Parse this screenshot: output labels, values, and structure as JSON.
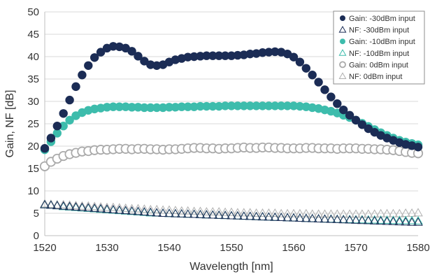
{
  "chart_data": {
    "type": "scatter",
    "xlabel": "Wavelength [nm]",
    "ylabel": "Gain, NF [dB]",
    "xlim": [
      1520,
      1580
    ],
    "ylim": [
      0,
      50
    ],
    "xticks": [
      1520,
      1530,
      1540,
      1550,
      1560,
      1570,
      1580
    ],
    "yticks": [
      0,
      5,
      10,
      15,
      20,
      25,
      30,
      35,
      40,
      45,
      50
    ],
    "grid": "horizontal",
    "legend_position": "top-right",
    "series": [
      {
        "name": "Gain: -30dBm input",
        "marker": "circle-filled",
        "color": "#1b2c55",
        "x": [
          1520,
          1521,
          1522,
          1523,
          1524,
          1525,
          1526,
          1527,
          1528,
          1529,
          1530,
          1531,
          1532,
          1533,
          1534,
          1535,
          1536,
          1537,
          1538,
          1539,
          1540,
          1541,
          1542,
          1543,
          1544,
          1545,
          1546,
          1547,
          1548,
          1549,
          1550,
          1551,
          1552,
          1553,
          1554,
          1555,
          1556,
          1557,
          1558,
          1559,
          1560,
          1561,
          1562,
          1563,
          1564,
          1565,
          1566,
          1567,
          1568,
          1569,
          1570,
          1571,
          1572,
          1573,
          1574,
          1575,
          1576,
          1577,
          1578,
          1579,
          1580
        ],
        "values": [
          19.5,
          21.8,
          24.5,
          27.3,
          30.3,
          33.3,
          35.9,
          38.0,
          39.8,
          41.0,
          41.9,
          42.3,
          42.2,
          41.9,
          41.2,
          40.1,
          39.0,
          38.2,
          38.0,
          38.2,
          38.8,
          39.3,
          39.6,
          39.9,
          40.0,
          40.1,
          40.2,
          40.2,
          40.2,
          40.2,
          40.2,
          40.3,
          40.4,
          40.6,
          40.7,
          40.9,
          41.0,
          41.1,
          41.0,
          40.6,
          39.9,
          38.8,
          37.4,
          35.9,
          34.3,
          32.6,
          31.0,
          29.5,
          28.1,
          26.9,
          25.8,
          24.8,
          23.9,
          23.1,
          22.4,
          21.8,
          21.3,
          20.8,
          20.4,
          20.1,
          19.8
        ]
      },
      {
        "name": "NF: -30dBm input",
        "marker": "triangle-open",
        "color": "#1b2c55",
        "x": [
          1520,
          1521,
          1522,
          1523,
          1524,
          1525,
          1526,
          1527,
          1528,
          1529,
          1530,
          1531,
          1532,
          1533,
          1534,
          1535,
          1536,
          1537,
          1538,
          1539,
          1540,
          1541,
          1542,
          1543,
          1544,
          1545,
          1546,
          1547,
          1548,
          1549,
          1550,
          1551,
          1552,
          1553,
          1554,
          1555,
          1556,
          1557,
          1558,
          1559,
          1560,
          1561,
          1562,
          1563,
          1564,
          1565,
          1566,
          1567,
          1568,
          1569,
          1570,
          1571,
          1572,
          1573,
          1574,
          1575,
          1576,
          1577,
          1578,
          1579,
          1580
        ],
        "values": [
          6.9,
          6.8,
          6.7,
          6.6,
          6.5,
          6.4,
          6.3,
          6.2,
          6.1,
          6.0,
          5.9,
          5.8,
          5.7,
          5.6,
          5.5,
          5.4,
          5.3,
          5.2,
          5.1,
          5.0,
          4.95,
          4.9,
          4.85,
          4.8,
          4.75,
          4.7,
          4.65,
          4.6,
          4.55,
          4.5,
          4.45,
          4.4,
          4.35,
          4.3,
          4.25,
          4.2,
          4.15,
          4.1,
          4.05,
          4.0,
          3.95,
          3.9,
          3.85,
          3.8,
          3.75,
          3.7,
          3.65,
          3.6,
          3.55,
          3.5,
          3.45,
          3.4,
          3.35,
          3.3,
          3.25,
          3.2,
          3.15,
          3.1,
          3.05,
          3.0,
          3.0
        ]
      },
      {
        "name": "Gain: -10dBm input",
        "marker": "circle-filled",
        "color": "#3dbcac",
        "x": [
          1520,
          1521,
          1522,
          1523,
          1524,
          1525,
          1526,
          1527,
          1528,
          1529,
          1530,
          1531,
          1532,
          1533,
          1534,
          1535,
          1536,
          1537,
          1538,
          1539,
          1540,
          1541,
          1542,
          1543,
          1544,
          1545,
          1546,
          1547,
          1548,
          1549,
          1550,
          1551,
          1552,
          1553,
          1554,
          1555,
          1556,
          1557,
          1558,
          1559,
          1560,
          1561,
          1562,
          1563,
          1564,
          1565,
          1566,
          1567,
          1568,
          1569,
          1570,
          1571,
          1572,
          1573,
          1574,
          1575,
          1576,
          1577,
          1578,
          1579,
          1580
        ],
        "values": [
          19.2,
          21.0,
          22.9,
          24.5,
          25.8,
          26.8,
          27.5,
          28.0,
          28.3,
          28.5,
          28.7,
          28.8,
          28.8,
          28.8,
          28.7,
          28.7,
          28.6,
          28.6,
          28.6,
          28.6,
          28.7,
          28.7,
          28.8,
          28.8,
          28.8,
          28.9,
          28.9,
          28.9,
          28.9,
          29.0,
          29.0,
          29.0,
          29.0,
          29.0,
          29.0,
          29.0,
          29.0,
          29.0,
          29.0,
          29.0,
          29.0,
          28.9,
          28.8,
          28.6,
          28.4,
          28.1,
          27.8,
          27.4,
          26.9,
          26.4,
          25.8,
          25.1,
          24.4,
          23.7,
          23.0,
          22.4,
          21.8,
          21.3,
          20.9,
          20.6,
          20.3
        ]
      },
      {
        "name": "NF: -10dBm input",
        "marker": "triangle-open",
        "color": "#3dbcac",
        "x": [
          1520,
          1521,
          1522,
          1523,
          1524,
          1525,
          1526,
          1527,
          1528,
          1529,
          1530,
          1531,
          1532,
          1533,
          1534,
          1535,
          1536,
          1537,
          1538,
          1539,
          1540,
          1541,
          1542,
          1543,
          1544,
          1545,
          1546,
          1547,
          1548,
          1549,
          1550,
          1551,
          1552,
          1553,
          1554,
          1555,
          1556,
          1557,
          1558,
          1559,
          1560,
          1561,
          1562,
          1563,
          1564,
          1565,
          1566,
          1567,
          1568,
          1569,
          1570,
          1571,
          1572,
          1573,
          1574,
          1575,
          1576,
          1577,
          1578,
          1579,
          1580
        ],
        "values": [
          6.9,
          6.8,
          6.7,
          6.5,
          6.4,
          6.3,
          6.2,
          6.1,
          6.0,
          5.9,
          5.8,
          5.7,
          5.6,
          5.5,
          5.4,
          5.3,
          5.2,
          5.1,
          5.05,
          5.0,
          4.95,
          4.9,
          4.85,
          4.8,
          4.75,
          4.7,
          4.65,
          4.6,
          4.55,
          4.5,
          4.45,
          4.4,
          4.35,
          4.3,
          4.25,
          4.2,
          4.15,
          4.1,
          4.05,
          4.0,
          3.95,
          3.9,
          3.85,
          3.8,
          3.75,
          3.7,
          3.7,
          3.65,
          3.6,
          3.6,
          3.55,
          3.55,
          3.5,
          3.5,
          3.45,
          3.45,
          3.4,
          3.4,
          3.35,
          3.35,
          3.3
        ]
      },
      {
        "name": "Gain: 0dBm input",
        "marker": "circle-open",
        "color": "#aaaaaa",
        "x": [
          1520,
          1521,
          1522,
          1523,
          1524,
          1525,
          1526,
          1527,
          1528,
          1529,
          1530,
          1531,
          1532,
          1533,
          1534,
          1535,
          1536,
          1537,
          1538,
          1539,
          1540,
          1541,
          1542,
          1543,
          1544,
          1545,
          1546,
          1547,
          1548,
          1549,
          1550,
          1551,
          1552,
          1553,
          1554,
          1555,
          1556,
          1557,
          1558,
          1559,
          1560,
          1561,
          1562,
          1563,
          1564,
          1565,
          1566,
          1567,
          1568,
          1569,
          1570,
          1571,
          1572,
          1573,
          1574,
          1575,
          1576,
          1577,
          1578,
          1579,
          1580
        ],
        "values": [
          15.5,
          16.5,
          17.2,
          17.8,
          18.2,
          18.5,
          18.8,
          18.9,
          19.1,
          19.2,
          19.2,
          19.3,
          19.4,
          19.4,
          19.3,
          19.4,
          19.4,
          19.3,
          19.3,
          19.2,
          19.3,
          19.3,
          19.4,
          19.5,
          19.6,
          19.6,
          19.5,
          19.5,
          19.4,
          19.5,
          19.5,
          19.6,
          19.7,
          19.6,
          19.6,
          19.7,
          19.7,
          19.6,
          19.6,
          19.5,
          19.5,
          19.5,
          19.6,
          19.6,
          19.5,
          19.5,
          19.5,
          19.4,
          19.5,
          19.5,
          19.5,
          19.4,
          19.4,
          19.3,
          19.3,
          19.2,
          19.1,
          18.9,
          18.7,
          18.5,
          18.4
        ]
      },
      {
        "name": "NF: 0dBm input",
        "marker": "triangle-open",
        "color": "#b0b0b0",
        "x": [
          1520,
          1521,
          1522,
          1523,
          1524,
          1525,
          1526,
          1527,
          1528,
          1529,
          1530,
          1531,
          1532,
          1533,
          1534,
          1535,
          1536,
          1537,
          1538,
          1539,
          1540,
          1541,
          1542,
          1543,
          1544,
          1545,
          1546,
          1547,
          1548,
          1549,
          1550,
          1551,
          1552,
          1553,
          1554,
          1555,
          1556,
          1557,
          1558,
          1559,
          1560,
          1561,
          1562,
          1563,
          1564,
          1565,
          1566,
          1567,
          1568,
          1569,
          1570,
          1571,
          1572,
          1573,
          1574,
          1575,
          1576,
          1577,
          1578,
          1579,
          1580
        ],
        "values": [
          7.1,
          7.0,
          6.9,
          6.9,
          6.8,
          6.7,
          6.6,
          6.6,
          6.5,
          6.4,
          6.3,
          6.3,
          6.2,
          6.1,
          6.0,
          6.0,
          5.9,
          5.8,
          5.8,
          5.7,
          5.7,
          5.6,
          5.5,
          5.5,
          5.4,
          5.4,
          5.3,
          5.3,
          5.3,
          5.2,
          5.2,
          5.1,
          5.1,
          5.1,
          5.0,
          5.0,
          5.0,
          5.0,
          4.9,
          4.9,
          4.9,
          4.9,
          4.9,
          4.8,
          4.8,
          4.8,
          4.8,
          4.8,
          4.8,
          4.8,
          4.8,
          4.8,
          4.8,
          4.8,
          4.9,
          4.9,
          4.9,
          4.9,
          5.0,
          5.0,
          5.1
        ]
      }
    ]
  }
}
